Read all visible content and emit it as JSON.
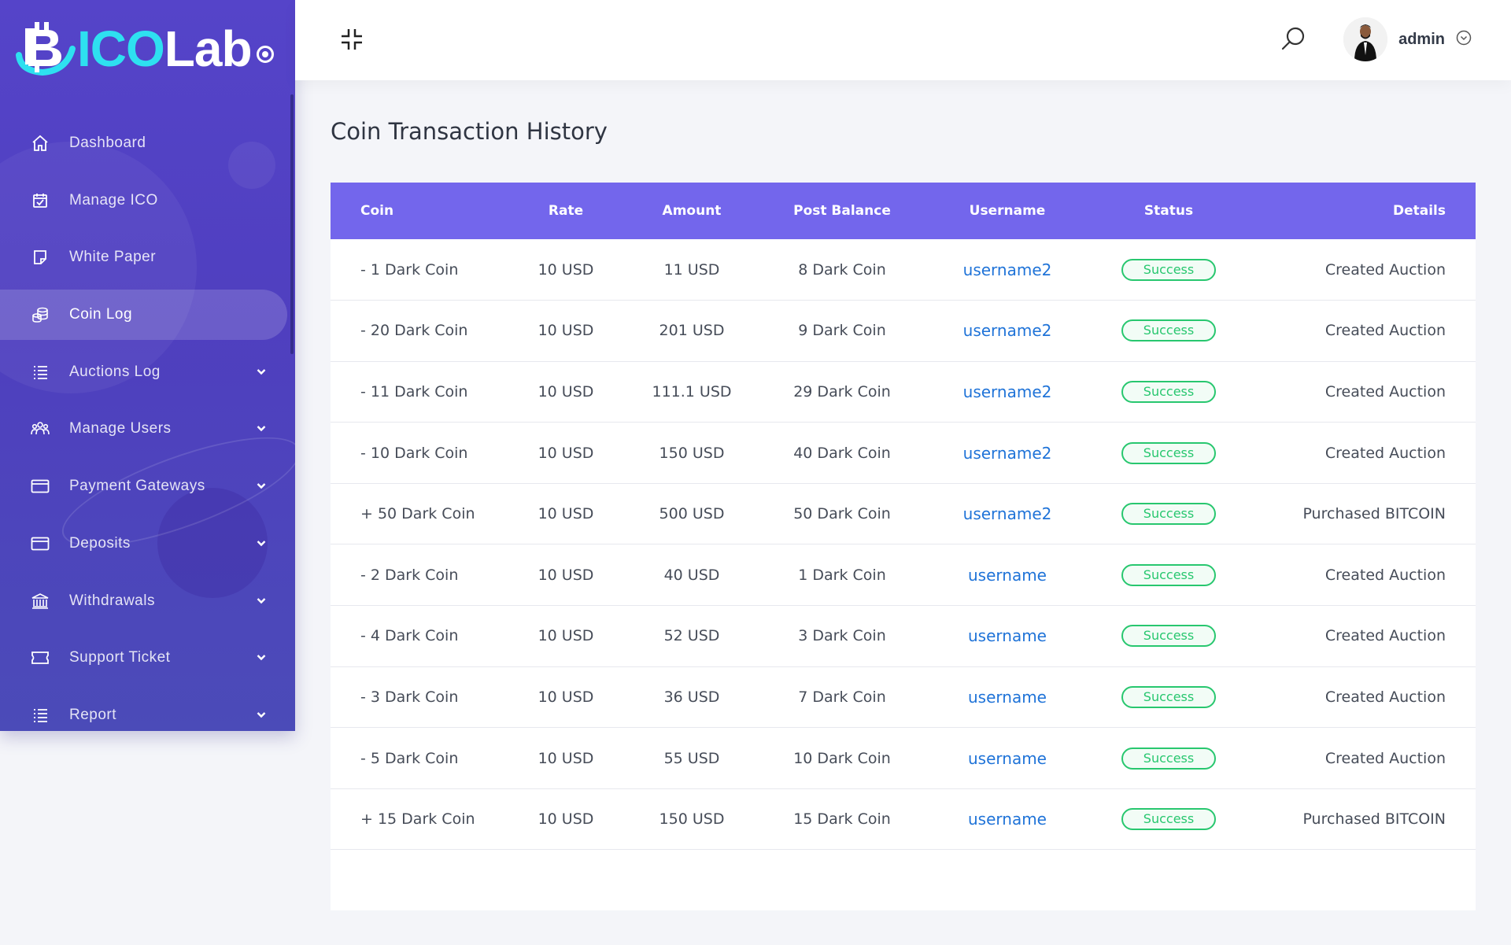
{
  "brand": {
    "ico": "ICO",
    "lab": "Lab"
  },
  "sidebar": {
    "items": [
      {
        "label": "Dashboard",
        "icon": "home-icon",
        "has_submenu": false,
        "active": false
      },
      {
        "label": "Manage ICO",
        "icon": "calendar-check-icon",
        "has_submenu": false,
        "active": false
      },
      {
        "label": "White Paper",
        "icon": "document-icon",
        "has_submenu": false,
        "active": false
      },
      {
        "label": "Coin Log",
        "icon": "coins-icon",
        "has_submenu": false,
        "active": true
      },
      {
        "label": "Auctions Log",
        "icon": "list-icon",
        "has_submenu": true,
        "active": false
      },
      {
        "label": "Manage Users",
        "icon": "users-icon",
        "has_submenu": true,
        "active": false
      },
      {
        "label": "Payment Gateways",
        "icon": "credit-card-icon",
        "has_submenu": true,
        "active": false
      },
      {
        "label": "Deposits",
        "icon": "credit-card-icon",
        "has_submenu": true,
        "active": false
      },
      {
        "label": "Withdrawals",
        "icon": "bank-icon",
        "has_submenu": true,
        "active": false
      },
      {
        "label": "Support Ticket",
        "icon": "ticket-icon",
        "has_submenu": true,
        "active": false
      },
      {
        "label": "Report",
        "icon": "list-icon",
        "has_submenu": true,
        "active": false
      }
    ]
  },
  "header": {
    "username": "admin",
    "icons": [
      "collapse-icon",
      "search-icon",
      "chevron-down-circle-icon"
    ]
  },
  "main": {
    "title": "Coin Transaction History",
    "table": {
      "columns": [
        "Coin",
        "Rate",
        "Amount",
        "Post Balance",
        "Username",
        "Status",
        "Details"
      ],
      "rows": [
        {
          "coin": "- 1 Dark Coin",
          "rate": "10 USD",
          "amount": "11 USD",
          "post_balance": "8 Dark Coin",
          "username": "username2",
          "status": "Success",
          "details": "Created Auction"
        },
        {
          "coin": "- 20 Dark Coin",
          "rate": "10 USD",
          "amount": "201 USD",
          "post_balance": "9 Dark Coin",
          "username": "username2",
          "status": "Success",
          "details": "Created Auction"
        },
        {
          "coin": "- 11 Dark Coin",
          "rate": "10 USD",
          "amount": "111.1 USD",
          "post_balance": "29 Dark Coin",
          "username": "username2",
          "status": "Success",
          "details": "Created Auction"
        },
        {
          "coin": "- 10 Dark Coin",
          "rate": "10 USD",
          "amount": "150 USD",
          "post_balance": "40 Dark Coin",
          "username": "username2",
          "status": "Success",
          "details": "Created Auction"
        },
        {
          "coin": "+ 50 Dark Coin",
          "rate": "10 USD",
          "amount": "500 USD",
          "post_balance": "50 Dark Coin",
          "username": "username2",
          "status": "Success",
          "details": "Purchased BITCOIN"
        },
        {
          "coin": "- 2 Dark Coin",
          "rate": "10 USD",
          "amount": "40 USD",
          "post_balance": "1 Dark Coin",
          "username": "username",
          "status": "Success",
          "details": "Created Auction"
        },
        {
          "coin": "- 4 Dark Coin",
          "rate": "10 USD",
          "amount": "52 USD",
          "post_balance": "3 Dark Coin",
          "username": "username",
          "status": "Success",
          "details": "Created Auction"
        },
        {
          "coin": "- 3 Dark Coin",
          "rate": "10 USD",
          "amount": "36 USD",
          "post_balance": "7 Dark Coin",
          "username": "username",
          "status": "Success",
          "details": "Created Auction"
        },
        {
          "coin": "- 5 Dark Coin",
          "rate": "10 USD",
          "amount": "55 USD",
          "post_balance": "10 Dark Coin",
          "username": "username",
          "status": "Success",
          "details": "Created Auction"
        },
        {
          "coin": "+ 15 Dark Coin",
          "rate": "10 USD",
          "amount": "150 USD",
          "post_balance": "15 Dark Coin",
          "username": "username",
          "status": "Success",
          "details": "Purchased BITCOIN"
        }
      ]
    }
  },
  "colors": {
    "sidebar": "#5544c9",
    "table_header": "#7366ec",
    "success": "#28c76f",
    "link": "#1f73d8",
    "logo_accent": "#2ee0f0"
  }
}
